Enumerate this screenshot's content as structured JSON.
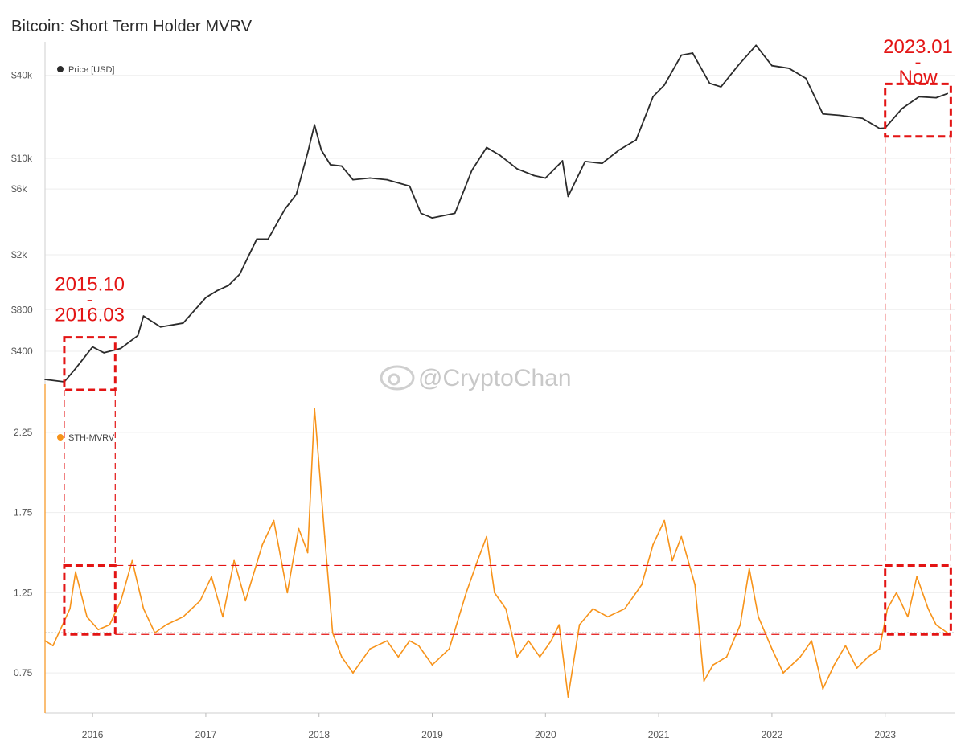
{
  "title": "Bitcoin: Short Term Holder MVRV",
  "watermark": "@CryptoChan",
  "colors": {
    "price": "#2b2b2b",
    "mvrv": "#f7931a",
    "highlight": "#e31414",
    "grid": "#eeeeee"
  },
  "chart_data": [
    {
      "type": "line",
      "scale": "log",
      "y_tick_labels": [
        "$40k",
        "$10k",
        "$6k",
        "$2k",
        "$800",
        "$400"
      ],
      "y_ticks": [
        40000,
        10000,
        6000,
        2000,
        800,
        400
      ],
      "ylim": [
        250,
        70000
      ],
      "legend": "top-left",
      "series": [
        {
          "name": "Price [USD]",
          "x": [
            2015.58,
            2015.75,
            2015.85,
            2016.0,
            2016.1,
            2016.25,
            2016.4,
            2016.45,
            2016.6,
            2016.8,
            2017.0,
            2017.1,
            2017.2,
            2017.3,
            2017.45,
            2017.55,
            2017.7,
            2017.8,
            2017.9,
            2017.96,
            2018.02,
            2018.1,
            2018.2,
            2018.3,
            2018.45,
            2018.6,
            2018.8,
            2018.9,
            2019.0,
            2019.2,
            2019.35,
            2019.48,
            2019.6,
            2019.75,
            2019.9,
            2020.0,
            2020.15,
            2020.2,
            2020.35,
            2020.5,
            2020.65,
            2020.8,
            2020.95,
            2021.05,
            2021.2,
            2021.3,
            2021.45,
            2021.55,
            2021.7,
            2021.86,
            2022.0,
            2022.15,
            2022.3,
            2022.45,
            2022.6,
            2022.8,
            2022.95,
            2023.0,
            2023.15,
            2023.3,
            2023.45,
            2023.55
          ],
          "values": [
            250,
            240,
            300,
            430,
            390,
            420,
            520,
            720,
            600,
            640,
            980,
            1100,
            1200,
            1450,
            2600,
            2600,
            4300,
            5500,
            11000,
            17500,
            11500,
            9000,
            8800,
            7000,
            7200,
            7000,
            6300,
            4000,
            3700,
            4000,
            8200,
            12000,
            10500,
            8400,
            7500,
            7200,
            9600,
            5300,
            9500,
            9200,
            11500,
            13600,
            28000,
            34000,
            56000,
            58000,
            35000,
            33000,
            47000,
            66000,
            47000,
            45000,
            38000,
            21000,
            20500,
            19500,
            16500,
            16600,
            23000,
            28000,
            27500,
            29500
          ]
        }
      ]
    },
    {
      "type": "line",
      "y_tick_labels": [
        "2.25",
        "1.75",
        "1.25",
        "0.75"
      ],
      "y_ticks": [
        2.25,
        1.75,
        1.25,
        0.75
      ],
      "ylim": [
        0.5,
        2.55
      ],
      "legend": "top-left",
      "reference_line": 1.0,
      "series": [
        {
          "name": "STH-MVRV",
          "x": [
            2015.58,
            2015.65,
            2015.8,
            2015.85,
            2015.95,
            2016.05,
            2016.15,
            2016.25,
            2016.35,
            2016.45,
            2016.55,
            2016.65,
            2016.8,
            2016.95,
            2017.05,
            2017.15,
            2017.25,
            2017.35,
            2017.5,
            2017.6,
            2017.72,
            2017.82,
            2017.9,
            2017.96,
            2018.05,
            2018.12,
            2018.2,
            2018.3,
            2018.45,
            2018.6,
            2018.7,
            2018.8,
            2018.88,
            2019.0,
            2019.15,
            2019.3,
            2019.4,
            2019.48,
            2019.55,
            2019.65,
            2019.75,
            2019.85,
            2019.95,
            2020.05,
            2020.12,
            2020.2,
            2020.3,
            2020.42,
            2020.55,
            2020.7,
            2020.85,
            2020.95,
            2021.05,
            2021.12,
            2021.2,
            2021.32,
            2021.4,
            2021.48,
            2021.6,
            2021.72,
            2021.8,
            2021.88,
            2022.0,
            2022.1,
            2022.25,
            2022.35,
            2022.45,
            2022.55,
            2022.65,
            2022.75,
            2022.85,
            2022.95,
            2023.02,
            2023.1,
            2023.2,
            2023.28,
            2023.38,
            2023.45,
            2023.55
          ],
          "values": [
            0.95,
            0.92,
            1.15,
            1.38,
            1.1,
            1.02,
            1.05,
            1.2,
            1.45,
            1.15,
            1.0,
            1.05,
            1.1,
            1.2,
            1.35,
            1.1,
            1.45,
            1.2,
            1.55,
            1.7,
            1.25,
            1.65,
            1.5,
            2.4,
            1.6,
            1.0,
            0.85,
            0.75,
            0.9,
            0.95,
            0.85,
            0.95,
            0.92,
            0.8,
            0.9,
            1.25,
            1.45,
            1.6,
            1.25,
            1.15,
            0.85,
            0.95,
            0.85,
            0.95,
            1.05,
            0.6,
            1.05,
            1.15,
            1.1,
            1.15,
            1.3,
            1.55,
            1.7,
            1.45,
            1.6,
            1.3,
            0.7,
            0.8,
            0.85,
            1.05,
            1.4,
            1.1,
            0.9,
            0.75,
            0.85,
            0.95,
            0.65,
            0.8,
            0.92,
            0.78,
            0.85,
            0.9,
            1.15,
            1.25,
            1.1,
            1.35,
            1.15,
            1.05,
            1.0
          ]
        }
      ]
    }
  ],
  "x_axis": {
    "tick_labels": [
      "2016",
      "2017",
      "2018",
      "2019",
      "2020",
      "2021",
      "2022",
      "2023"
    ],
    "ticks": [
      2016,
      2017,
      2018,
      2019,
      2020,
      2021,
      2022,
      2023
    ],
    "xlim": [
      2015.58,
      2023.62
    ]
  },
  "annotations": [
    {
      "lines": [
        "2015.10",
        "-",
        "2016.03"
      ],
      "x_start": 2015.75,
      "x_end": 2016.2
    },
    {
      "lines": [
        "2023.01",
        "-",
        "Now"
      ],
      "x_start": 2023.0,
      "x_end": 2023.58
    }
  ]
}
